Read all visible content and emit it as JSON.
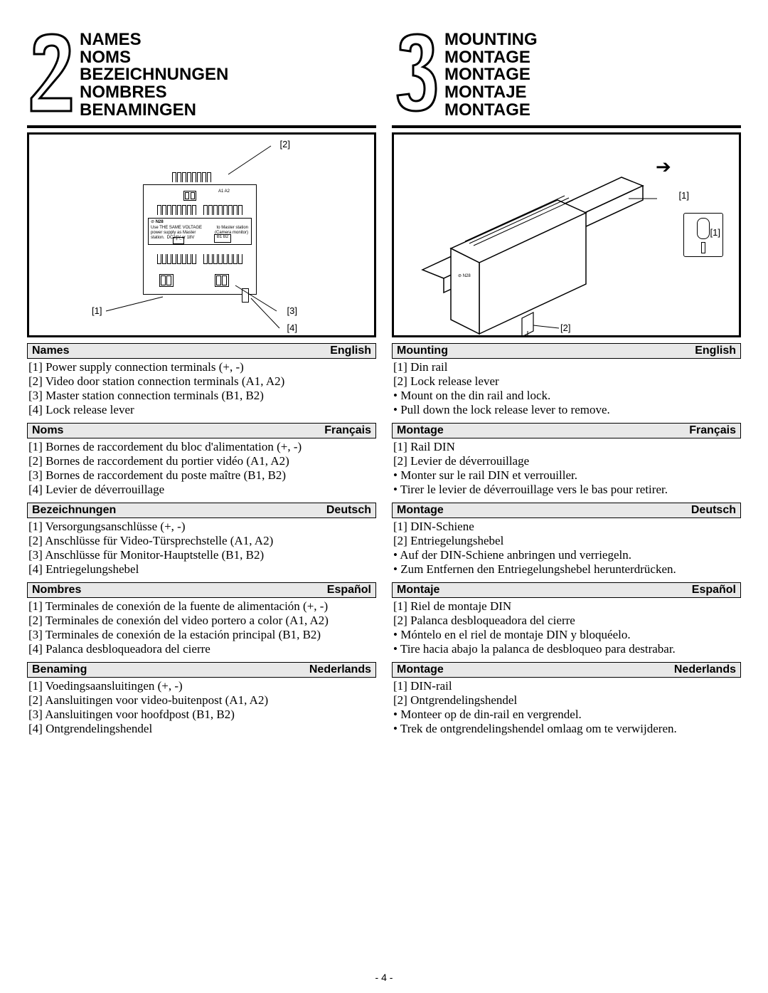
{
  "page_number": "- 4 -",
  "left": {
    "section_number": "2",
    "titles": [
      "NAMES",
      "NOMS",
      "BEZEICHNUNGEN",
      "NOMBRES",
      "BENAMINGEN"
    ],
    "diagram_labels": {
      "l1": "[1]",
      "l2": "[2]",
      "l3": "[3]",
      "l4": "[4]"
    },
    "sections": [
      {
        "heading": "Names",
        "lang": "English",
        "lines": [
          "[1] Power supply connection terminals (+, -)",
          "[2] Video door station connection terminals (A1, A2)",
          "[3] Master station connection terminals (B1, B2)",
          "[4] Lock release lever"
        ]
      },
      {
        "heading": "Noms",
        "lang": "Français",
        "lines": [
          "[1] Bornes de raccordement du bloc d'alimentation (+, -)",
          "[2] Bornes de raccordement du portier vidéo (A1, A2)",
          "[3] Bornes de raccordement du poste maître (B1, B2)",
          "[4] Levier de déverrouillage"
        ]
      },
      {
        "heading": "Bezeichnungen",
        "lang": "Deutsch",
        "lines": [
          "[1] Versorgungsanschlüsse (+, -)",
          "[2] Anschlüsse für Video-Türsprechstelle (A1, A2)",
          "[3] Anschlüsse für Monitor-Hauptstelle (B1, B2)",
          "[4] Entriegelungshebel"
        ]
      },
      {
        "heading": "Nombres",
        "lang": "Español",
        "lines": [
          "[1] Terminales de conexión de la fuente de alimentación (+, -)",
          "[2] Terminales de conexión del video portero a color (A1, A2)",
          "[3] Terminales de conexión de la estación principal (B1, B2)",
          "[4] Palanca desbloqueadora del cierre"
        ]
      },
      {
        "heading": "Benaming",
        "lang": "Nederlands",
        "lines": [
          "[1] Voedingsaansluitingen (+, -)",
          "[2] Aansluitingen voor video-buitenpost (A1, A2)",
          "[3] Aansluitingen voor hoofdpost (B1, B2)",
          "[4] Ontgrendelingshendel"
        ]
      }
    ]
  },
  "right": {
    "section_number": "3",
    "titles": [
      "MOUNTING",
      "MONTAGE",
      "MONTAGE",
      "MONTAJE",
      "MONTAGE"
    ],
    "diagram_labels": {
      "l1a": "[1]",
      "l1b": "[1]",
      "l2": "[2]"
    },
    "sections": [
      {
        "heading": "Mounting",
        "lang": "English",
        "lines": [
          "[1] Din rail",
          "[2] Lock release lever"
        ],
        "bullets": [
          "Mount on the din rail and lock.",
          "Pull down the lock release lever to remove."
        ]
      },
      {
        "heading": "Montage",
        "lang": "Français",
        "lines": [
          "[1] Rail DIN",
          "[2] Levier de déverrouillage"
        ],
        "bullets": [
          "Monter sur le rail DIN et verrouiller.",
          "Tirer le levier de déverrouillage vers le bas pour retirer."
        ]
      },
      {
        "heading": "Montage",
        "lang": "Deutsch",
        "lines": [
          "[1] DIN-Schiene",
          "[2] Entriegelungshebel"
        ],
        "bullets": [
          "Auf der DIN-Schiene anbringen und verriegeln.",
          "Zum Entfernen den Entriegelungshebel herunterdrücken."
        ]
      },
      {
        "heading": "Montaje",
        "lang": "Español",
        "lines": [
          "[1] Riel de montaje DIN",
          "[2] Palanca desbloqueadora del cierre"
        ],
        "bullets": [
          "Móntelo en el riel de montaje DIN y bloquéelo.",
          "Tire hacia abajo la palanca de desbloqueo para destrabar."
        ]
      },
      {
        "heading": "Montage",
        "lang": "Nederlands",
        "lines": [
          "[1] DIN-rail",
          "[2] Ontgrendelingshendel"
        ],
        "bullets": [
          "Monteer op de din-rail en vergrendel.",
          "Trek de ontgrendelingshendel omlaag om te verwijderen."
        ]
      }
    ]
  }
}
